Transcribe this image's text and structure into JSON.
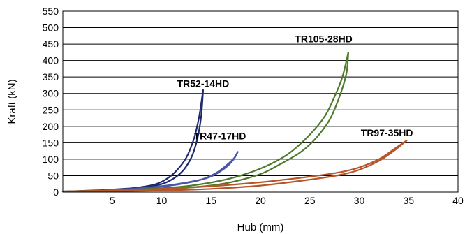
{
  "chart_data": {
    "type": "line",
    "title": "",
    "xlabel": "Hub (mm)",
    "ylabel": "Kraft (kN)",
    "xlim": [
      0,
      40
    ],
    "ylim": [
      0,
      550
    ],
    "x_ticks": [
      5,
      10,
      15,
      20,
      25,
      30,
      35,
      40
    ],
    "y_ticks": [
      0,
      50,
      100,
      150,
      200,
      250,
      300,
      350,
      400,
      450,
      500,
      550
    ],
    "grid": "horizontal",
    "series": [
      {
        "name": "TR52-14HD",
        "color": "#1f2a6e",
        "label_anchor": [
          14.2,
          320
        ],
        "loading": [
          [
            0,
            2
          ],
          [
            3,
            5
          ],
          [
            5,
            8
          ],
          [
            7,
            12
          ],
          [
            8.5,
            18
          ],
          [
            9.5,
            25
          ],
          [
            10.5,
            40
          ],
          [
            11.5,
            65
          ],
          [
            12.5,
            105
          ],
          [
            13.3,
            165
          ],
          [
            13.8,
            230
          ],
          [
            14.2,
            310
          ]
        ],
        "unloading": [
          [
            14.2,
            310
          ],
          [
            14.0,
            230
          ],
          [
            13.6,
            160
          ],
          [
            13.0,
            105
          ],
          [
            12.0,
            60
          ],
          [
            10.5,
            30
          ],
          [
            9.0,
            18
          ],
          [
            7.0,
            11
          ],
          [
            5,
            7
          ],
          [
            3,
            4
          ],
          [
            0,
            2
          ]
        ]
      },
      {
        "name": "TR47-17HD",
        "color": "#4a56a6",
        "label_anchor": [
          15.9,
          160
        ],
        "loading": [
          [
            0,
            2
          ],
          [
            4,
            5
          ],
          [
            7,
            10
          ],
          [
            9,
            15
          ],
          [
            11,
            22
          ],
          [
            13,
            32
          ],
          [
            14.5,
            42
          ],
          [
            15.5,
            55
          ],
          [
            16.5,
            75
          ],
          [
            17.3,
            100
          ],
          [
            17.7,
            122
          ]
        ],
        "unloading": [
          [
            17.7,
            122
          ],
          [
            17.3,
            102
          ],
          [
            16.5,
            80
          ],
          [
            15.5,
            58
          ],
          [
            14.0,
            38
          ],
          [
            12,
            25
          ],
          [
            10,
            17
          ],
          [
            8,
            12
          ],
          [
            6,
            8
          ],
          [
            3,
            4
          ],
          [
            0,
            2
          ]
        ]
      },
      {
        "name": "TR105-28HD",
        "color": "#4e7a2e",
        "label_anchor": [
          26.4,
          455
        ],
        "loading": [
          [
            0,
            2
          ],
          [
            5,
            6
          ],
          [
            10,
            12
          ],
          [
            13,
            20
          ],
          [
            16,
            35
          ],
          [
            18.5,
            55
          ],
          [
            21,
            85
          ],
          [
            23,
            120
          ],
          [
            25,
            175
          ],
          [
            26.5,
            230
          ],
          [
            27.5,
            290
          ],
          [
            28.3,
            350
          ],
          [
            28.9,
            425
          ]
        ],
        "unloading": [
          [
            28.9,
            425
          ],
          [
            28.7,
            360
          ],
          [
            28.0,
            290
          ],
          [
            27.0,
            220
          ],
          [
            25.5,
            160
          ],
          [
            24,
            120
          ],
          [
            22,
            85
          ],
          [
            20,
            55
          ],
          [
            17,
            30
          ],
          [
            14,
            17
          ],
          [
            10,
            9
          ],
          [
            5,
            4
          ],
          [
            0,
            2
          ]
        ]
      },
      {
        "name": "TR97-35HD",
        "color": "#b5562a",
        "label_anchor": [
          32.8,
          170
        ],
        "loading": [
          [
            0,
            2
          ],
          [
            5,
            5
          ],
          [
            10,
            10
          ],
          [
            15,
            18
          ],
          [
            20,
            30
          ],
          [
            25,
            47
          ],
          [
            28,
            60
          ],
          [
            30,
            75
          ],
          [
            32,
            100
          ],
          [
            33.5,
            130
          ],
          [
            34.8,
            157
          ]
        ],
        "unloading": [
          [
            34.8,
            157
          ],
          [
            33.5,
            125
          ],
          [
            32,
            95
          ],
          [
            30,
            68
          ],
          [
            28,
            52
          ],
          [
            25,
            38
          ],
          [
            20,
            20
          ],
          [
            15,
            10
          ],
          [
            10,
            5
          ],
          [
            5,
            3
          ],
          [
            0,
            2
          ]
        ]
      }
    ]
  }
}
